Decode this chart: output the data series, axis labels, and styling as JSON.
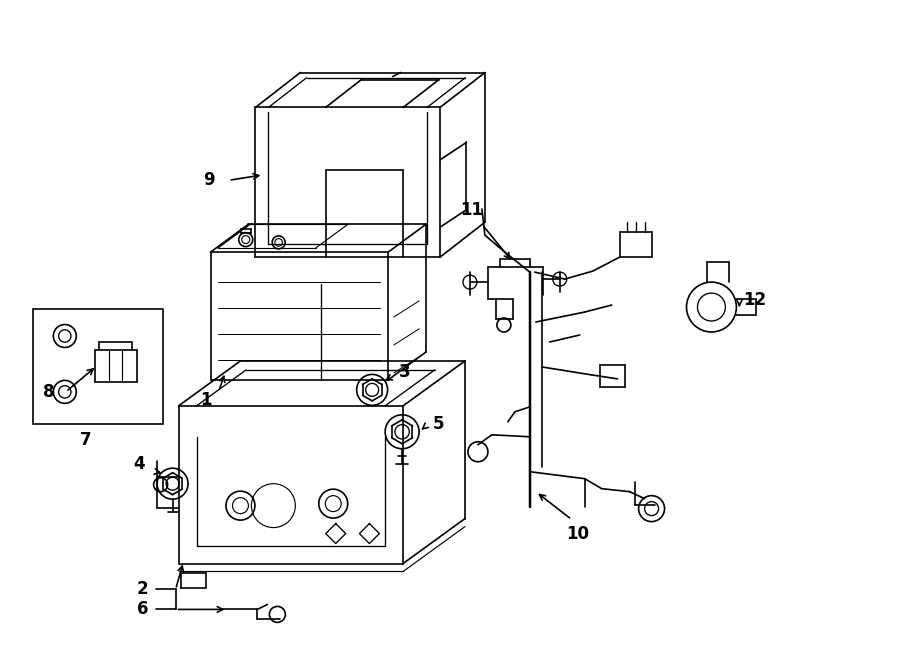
{
  "title": "",
  "background_color": "#ffffff",
  "line_color": "#000000",
  "figure_width": 9.0,
  "figure_height": 6.62,
  "dpi": 100
}
